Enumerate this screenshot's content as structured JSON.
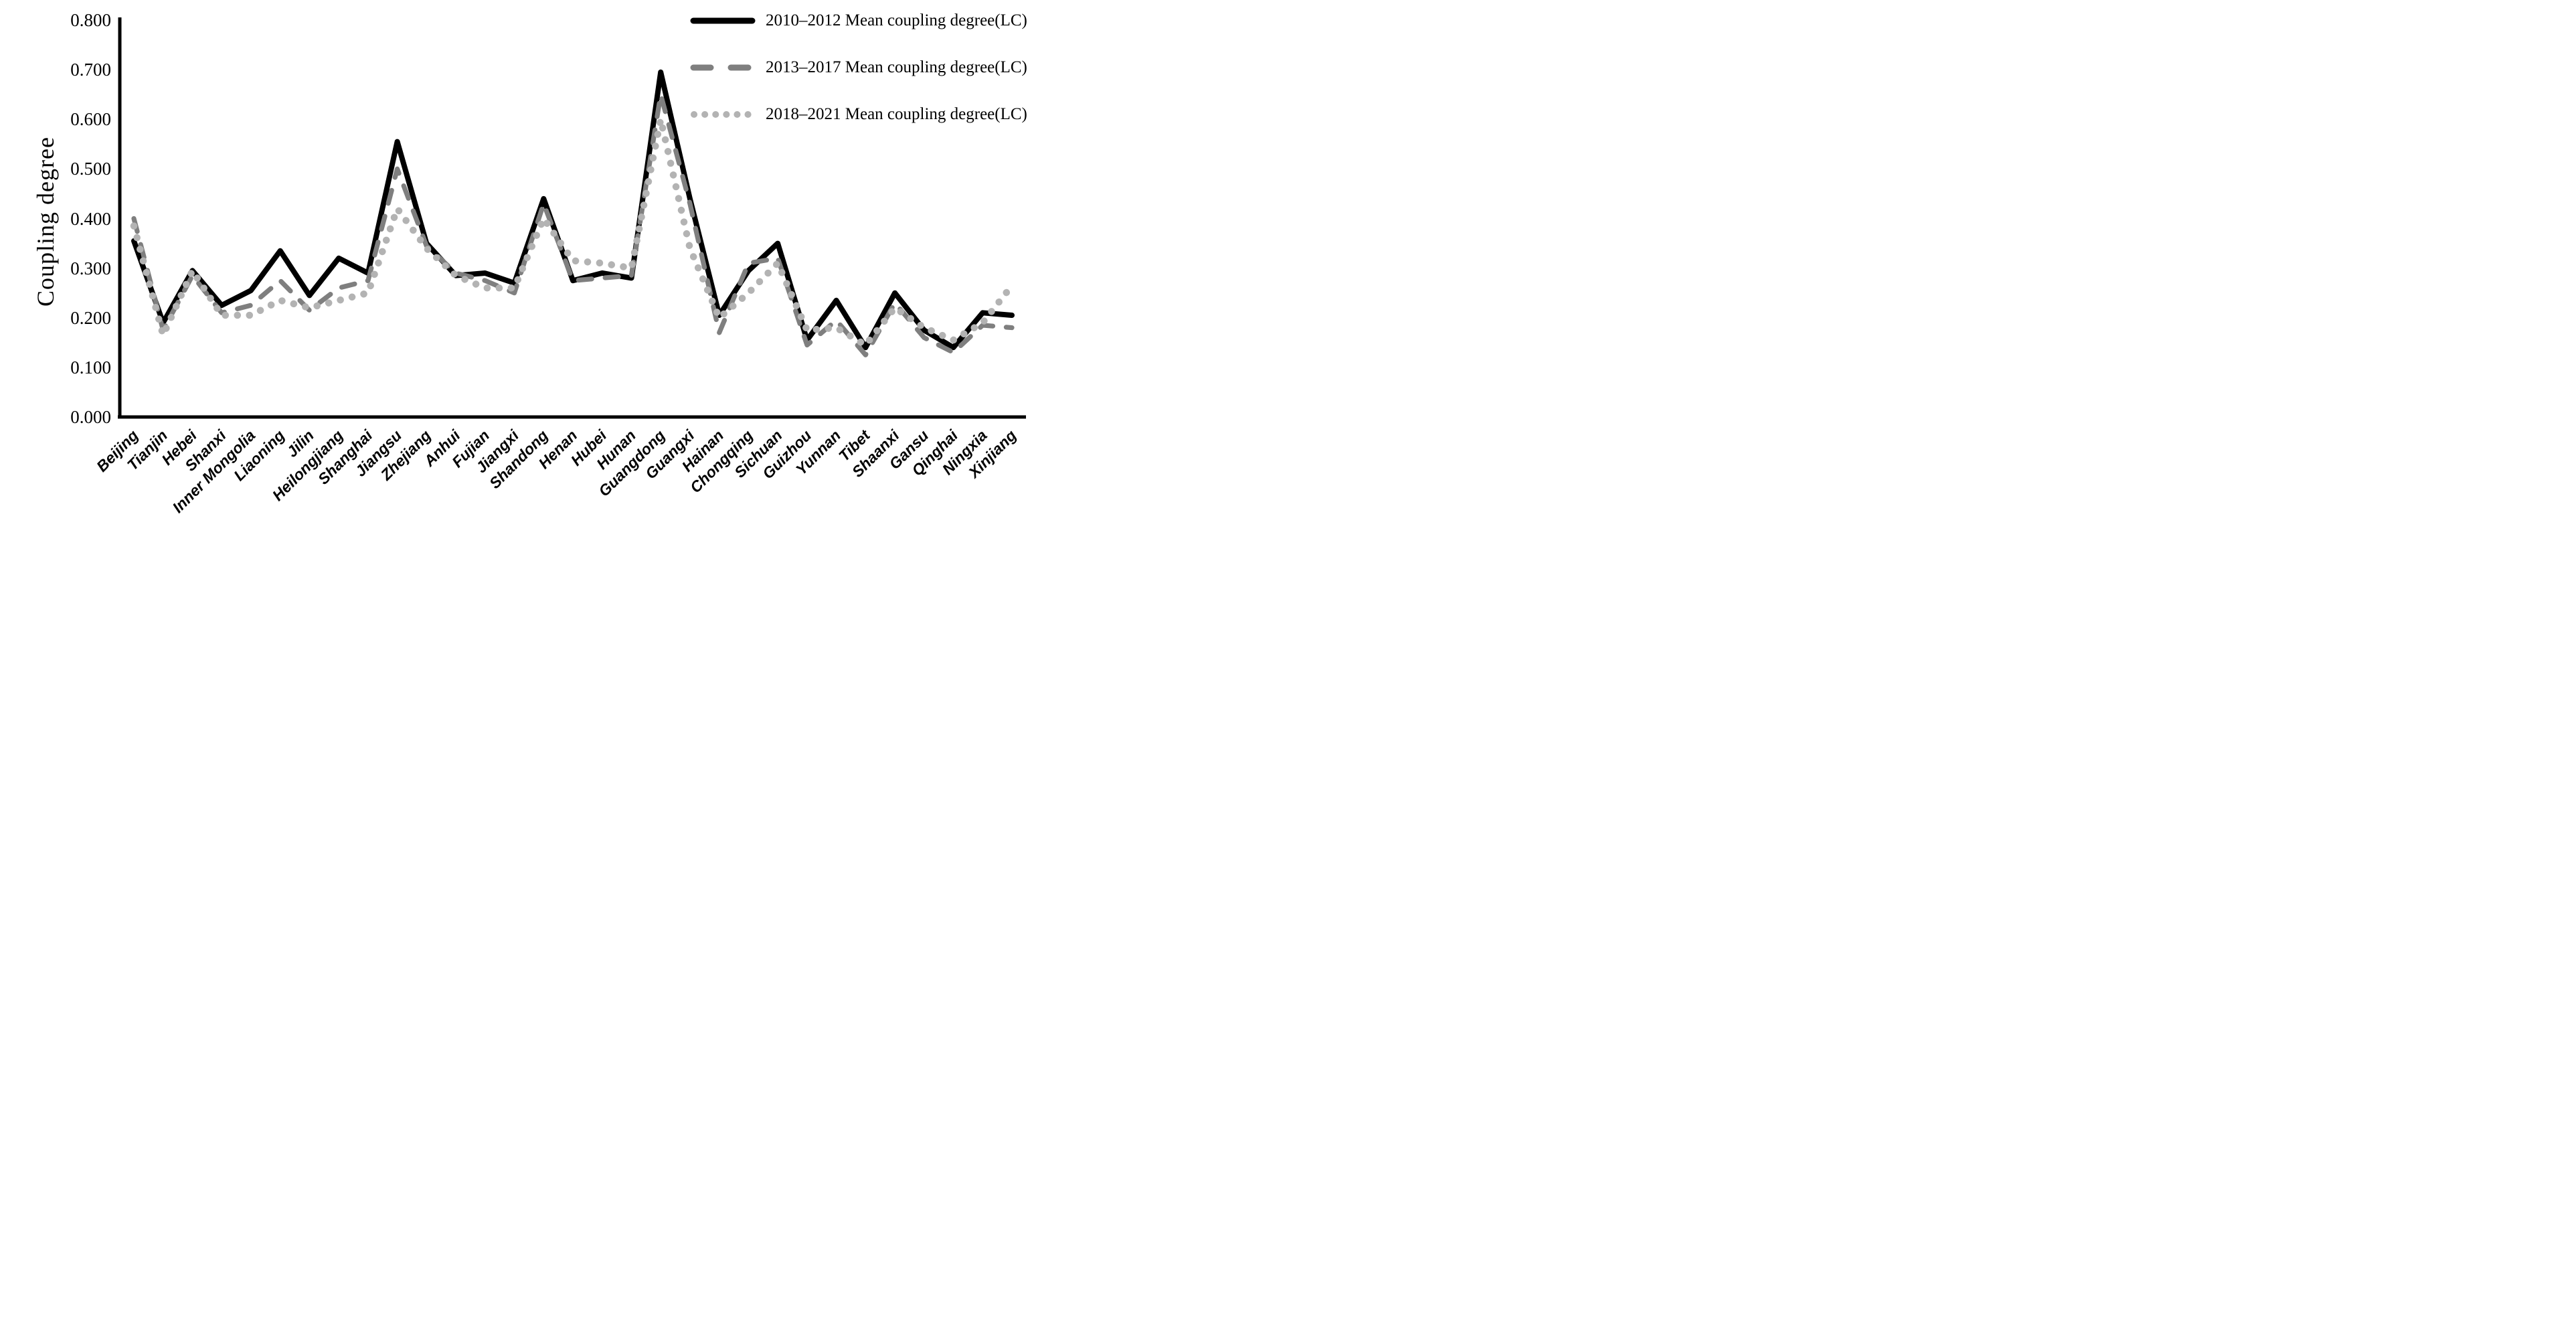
{
  "chart_data": {
    "type": "line",
    "title": "",
    "xlabel": "",
    "ylabel": "Coupling degree",
    "ylim": [
      0.0,
      0.8
    ],
    "ytick_step": 0.1,
    "ytick_labels": [
      "0.000",
      "0.100",
      "0.200",
      "0.300",
      "0.400",
      "0.500",
      "0.600",
      "0.700",
      "0.800"
    ],
    "grid": false,
    "legend_position": "top-right",
    "categories": [
      "Beijing",
      "Tianjin",
      "Hebei",
      "Shanxi",
      "Inner Mongolia",
      "Liaoning",
      "Jilin",
      "Heilongjiang",
      "Shanghai",
      "Jiangsu",
      "Zhejiang",
      "Anhui",
      "Fujian",
      "Jiangxi",
      "Shandong",
      "Henan",
      "Hubei",
      "Hunan",
      "Guangdong",
      "Guangxi",
      "Hainan",
      "Chongqing",
      "Sichuan",
      "Guizhou",
      "Yunnan",
      "Tibet",
      "Shaanxi",
      "Gansu",
      "Qinghai",
      "Ningxia",
      "Xinjiang"
    ],
    "series": [
      {
        "name": "2010–2012 Mean coupling degree(LC)",
        "style": "solid",
        "color": "#000000",
        "values": [
          0.355,
          0.19,
          0.295,
          0.225,
          0.255,
          0.335,
          0.245,
          0.32,
          0.29,
          0.555,
          0.35,
          0.285,
          0.29,
          0.27,
          0.44,
          0.275,
          0.29,
          0.28,
          0.695,
          0.44,
          0.205,
          0.295,
          0.35,
          0.155,
          0.235,
          0.14,
          0.25,
          0.175,
          0.14,
          0.21,
          0.205
        ]
      },
      {
        "name": "2013–2017 Mean coupling degree(LC)",
        "style": "dashed",
        "color": "#7f7f7f",
        "values": [
          0.4,
          0.175,
          0.285,
          0.21,
          0.225,
          0.275,
          0.215,
          0.26,
          0.275,
          0.5,
          0.345,
          0.29,
          0.275,
          0.25,
          0.43,
          0.275,
          0.28,
          0.285,
          0.65,
          0.43,
          0.17,
          0.31,
          0.32,
          0.145,
          0.195,
          0.125,
          0.23,
          0.16,
          0.13,
          0.185,
          0.18
        ]
      },
      {
        "name": "2018–2021 Mean coupling degree(LC)",
        "style": "dotted",
        "color": "#b3b3b3",
        "values": [
          0.385,
          0.165,
          0.295,
          0.205,
          0.205,
          0.235,
          0.22,
          0.235,
          0.25,
          0.42,
          0.34,
          0.285,
          0.26,
          0.26,
          0.4,
          0.315,
          0.31,
          0.3,
          0.6,
          0.34,
          0.2,
          0.25,
          0.31,
          0.175,
          0.18,
          0.145,
          0.22,
          0.18,
          0.155,
          0.19,
          0.265
        ]
      }
    ],
    "axis_color": "#000000"
  }
}
